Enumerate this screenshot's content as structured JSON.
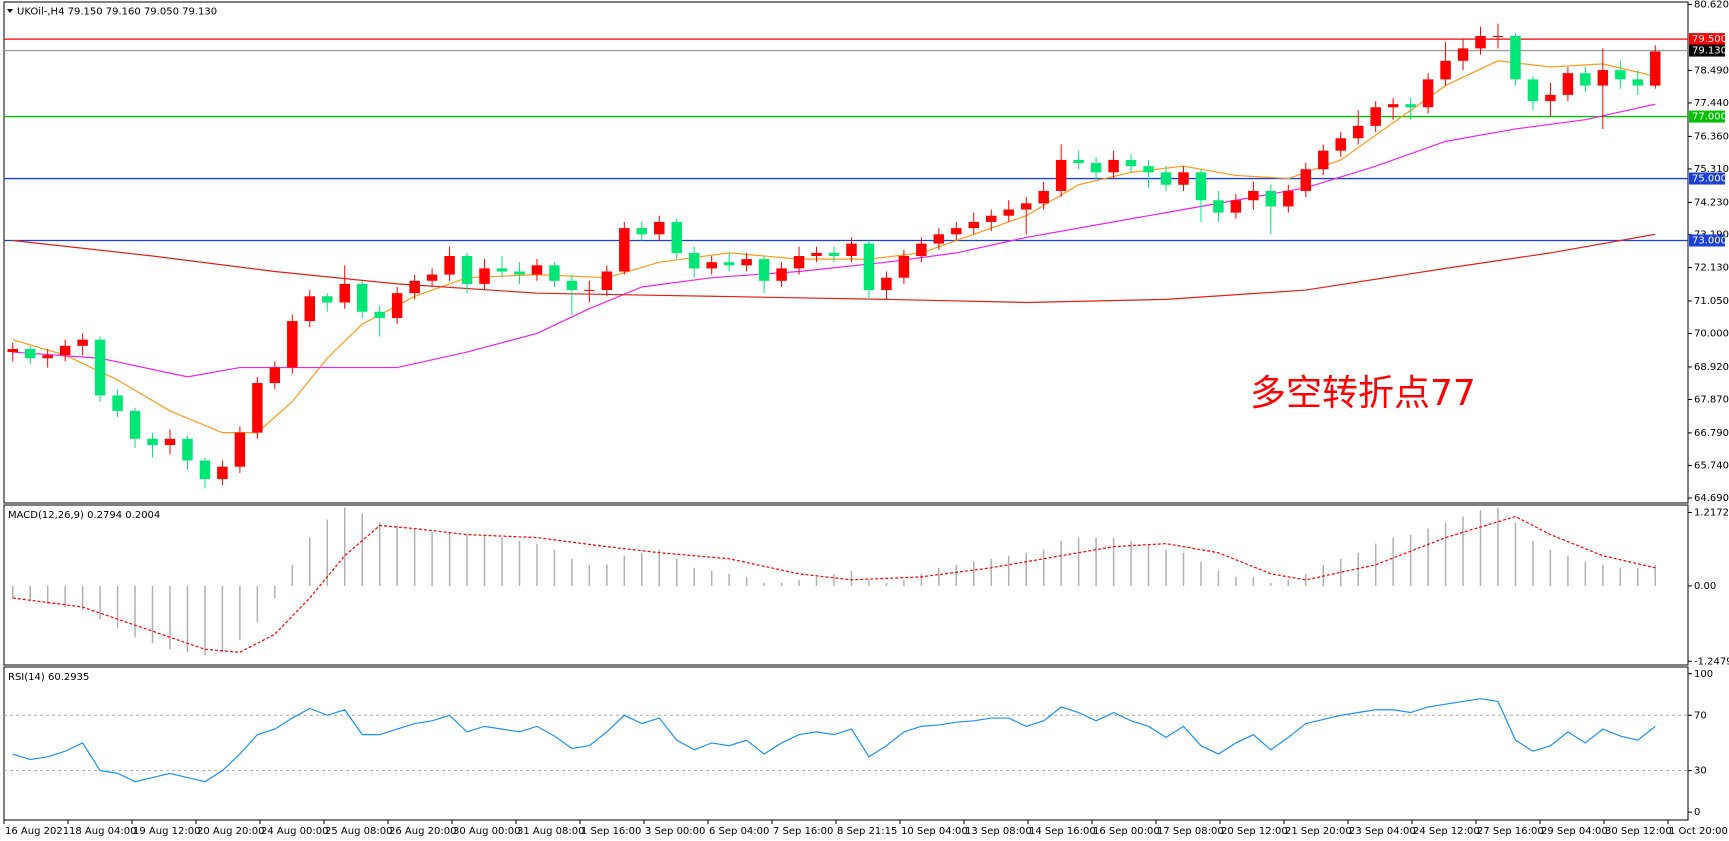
{
  "chart_data": [
    {
      "type": "candlestick",
      "title": "UKOil-,H4  79.150 79.160 79.050 79.130",
      "annotation": "多空转折点77",
      "up_color": "#ff0000",
      "down_color": "#00e676",
      "ylim": [
        64.69,
        80.62
      ],
      "yticks": [
        {
          "value": 80.62,
          "label": "80.620"
        },
        {
          "value": 78.49,
          "label": "78.490"
        },
        {
          "value": 77.44,
          "label": "77.440"
        },
        {
          "value": 76.36,
          "label": "76.360"
        },
        {
          "value": 75.31,
          "label": "75.310"
        },
        {
          "value": 74.23,
          "label": "74.230"
        },
        {
          "value": 73.19,
          "label": "73.190"
        },
        {
          "value": 72.13,
          "label": "72.130"
        },
        {
          "value": 71.05,
          "label": "71.050"
        },
        {
          "value": 70,
          "label": "70.000"
        },
        {
          "value": 68.92,
          "label": "68.920"
        },
        {
          "value": 67.87,
          "label": "67.870"
        },
        {
          "value": 66.79,
          "label": "66.790"
        },
        {
          "value": 65.74,
          "label": "65.740"
        },
        {
          "value": 64.69,
          "label": "64.690"
        }
      ],
      "hlines": [
        {
          "value": 79.5,
          "label": "79.500",
          "color": "#ff0000",
          "box": "#ff0000"
        },
        {
          "value": 79.13,
          "label": "79.130",
          "color": "#a0a0a0",
          "box": "#000000"
        },
        {
          "value": 77,
          "label": "77.000",
          "color": "#00c000",
          "box": "#00c000"
        },
        {
          "value": 75,
          "label": "75.000",
          "color": "#1c3fd6",
          "box": "#1c3fd6"
        },
        {
          "value": 73,
          "label": "73.000",
          "color": "#1c3fd6",
          "box": "#1c3fd6"
        }
      ],
      "candles": [
        [
          69.4,
          69.7,
          69.1,
          69.5
        ],
        [
          69.5,
          69.6,
          69.0,
          69.2
        ],
        [
          69.2,
          69.5,
          68.9,
          69.3
        ],
        [
          69.3,
          69.8,
          69.1,
          69.6
        ],
        [
          69.6,
          70.0,
          69.3,
          69.8
        ],
        [
          69.8,
          69.9,
          67.8,
          68.0
        ],
        [
          68.0,
          68.2,
          67.3,
          67.5
        ],
        [
          67.5,
          67.6,
          66.3,
          66.6
        ],
        [
          66.6,
          66.8,
          66.0,
          66.4
        ],
        [
          66.4,
          66.9,
          66.1,
          66.6
        ],
        [
          66.6,
          66.7,
          65.6,
          65.9
        ],
        [
          65.9,
          66.0,
          65.0,
          65.3
        ],
        [
          65.3,
          65.9,
          65.1,
          65.7
        ],
        [
          65.7,
          67.0,
          65.5,
          66.8
        ],
        [
          66.8,
          68.6,
          66.6,
          68.4
        ],
        [
          68.4,
          69.1,
          68.2,
          68.9
        ],
        [
          68.9,
          70.6,
          68.7,
          70.4
        ],
        [
          70.4,
          71.4,
          70.2,
          71.2
        ],
        [
          71.2,
          71.3,
          70.7,
          71.0
        ],
        [
          71.0,
          72.2,
          70.8,
          71.6
        ],
        [
          71.6,
          71.7,
          70.5,
          70.7
        ],
        [
          70.7,
          70.9,
          69.9,
          70.5
        ],
        [
          70.5,
          71.5,
          70.3,
          71.3
        ],
        [
          71.3,
          71.9,
          71.1,
          71.7
        ],
        [
          71.7,
          72.1,
          71.5,
          71.9
        ],
        [
          71.9,
          72.8,
          71.7,
          72.5
        ],
        [
          72.5,
          72.6,
          71.3,
          71.6
        ],
        [
          71.6,
          72.4,
          71.4,
          72.1
        ],
        [
          72.1,
          72.5,
          71.8,
          72.0
        ],
        [
          72.0,
          72.3,
          71.6,
          71.9
        ],
        [
          71.9,
          72.4,
          71.7,
          72.2
        ],
        [
          72.2,
          72.3,
          71.5,
          71.7
        ],
        [
          71.7,
          71.9,
          70.6,
          71.4
        ],
        [
          71.4,
          71.7,
          71.0,
          71.4
        ],
        [
          71.4,
          72.2,
          71.2,
          72.0
        ],
        [
          72.0,
          73.6,
          71.9,
          73.4
        ],
        [
          73.4,
          73.6,
          73.0,
          73.2
        ],
        [
          73.2,
          73.8,
          73.0,
          73.6
        ],
        [
          73.6,
          73.7,
          72.4,
          72.6
        ],
        [
          72.6,
          72.8,
          71.8,
          72.1
        ],
        [
          72.1,
          72.5,
          71.9,
          72.3
        ],
        [
          72.3,
          72.6,
          72.0,
          72.2
        ],
        [
          72.2,
          72.6,
          72.0,
          72.4
        ],
        [
          72.4,
          72.5,
          71.3,
          71.7
        ],
        [
          71.7,
          72.3,
          71.5,
          72.1
        ],
        [
          72.1,
          72.8,
          71.9,
          72.5
        ],
        [
          72.5,
          72.8,
          72.3,
          72.6
        ],
        [
          72.6,
          72.8,
          72.3,
          72.5
        ],
        [
          72.5,
          73.1,
          72.3,
          72.9
        ],
        [
          72.9,
          73.0,
          71.1,
          71.4
        ],
        [
          71.4,
          72.0,
          71.1,
          71.8
        ],
        [
          71.8,
          72.7,
          71.6,
          72.5
        ],
        [
          72.5,
          73.1,
          72.3,
          72.9
        ],
        [
          72.9,
          73.4,
          72.7,
          73.2
        ],
        [
          73.2,
          73.6,
          73.0,
          73.4
        ],
        [
          73.4,
          73.9,
          73.2,
          73.6
        ],
        [
          73.6,
          74.0,
          73.3,
          73.8
        ],
        [
          73.8,
          74.3,
          73.6,
          74.0
        ],
        [
          74.0,
          74.4,
          73.2,
          74.2
        ],
        [
          74.2,
          74.9,
          74.0,
          74.6
        ],
        [
          74.6,
          76.1,
          74.4,
          75.6
        ],
        [
          75.6,
          75.9,
          75.3,
          75.5
        ],
        [
          75.5,
          75.7,
          75.0,
          75.2
        ],
        [
          75.2,
          75.9,
          75.0,
          75.6
        ],
        [
          75.6,
          75.8,
          75.2,
          75.4
        ],
        [
          75.4,
          75.6,
          74.7,
          75.2
        ],
        [
          75.2,
          75.4,
          74.6,
          74.8
        ],
        [
          74.8,
          75.4,
          74.6,
          75.2
        ],
        [
          75.2,
          75.3,
          73.6,
          74.3
        ],
        [
          74.3,
          74.6,
          73.6,
          73.9
        ],
        [
          73.9,
          74.5,
          73.7,
          74.3
        ],
        [
          74.3,
          74.9,
          74.0,
          74.6
        ],
        [
          74.6,
          74.8,
          73.2,
          74.1
        ],
        [
          74.1,
          74.8,
          73.9,
          74.6
        ],
        [
          74.6,
          75.5,
          74.4,
          75.3
        ],
        [
          75.3,
          76.1,
          75.1,
          75.9
        ],
        [
          75.9,
          76.5,
          75.7,
          76.3
        ],
        [
          76.3,
          77.2,
          76.1,
          76.7
        ],
        [
          76.7,
          77.5,
          76.5,
          77.3
        ],
        [
          77.3,
          77.6,
          76.9,
          77.4
        ],
        [
          77.4,
          77.6,
          76.9,
          77.3
        ],
        [
          77.3,
          78.4,
          77.1,
          78.2
        ],
        [
          78.2,
          79.4,
          78.0,
          78.8
        ],
        [
          78.8,
          79.5,
          78.5,
          79.2
        ],
        [
          79.2,
          79.9,
          79.0,
          79.6
        ],
        [
          79.6,
          80.0,
          79.2,
          79.6
        ],
        [
          79.6,
          79.7,
          78.0,
          78.2
        ],
        [
          78.2,
          78.3,
          77.2,
          77.5
        ],
        [
          77.5,
          78.1,
          77.0,
          77.7
        ],
        [
          77.7,
          78.6,
          77.5,
          78.4
        ],
        [
          78.4,
          78.6,
          77.8,
          78.0
        ],
        [
          78.0,
          79.2,
          76.6,
          78.5
        ],
        [
          78.5,
          78.8,
          77.9,
          78.2
        ],
        [
          78.2,
          78.5,
          77.7,
          78.0
        ],
        [
          78.0,
          79.3,
          77.9,
          79.1
        ]
      ],
      "series": [
        {
          "color": "#ff9a1f",
          "x": [
            0,
            3,
            6,
            9,
            12,
            14,
            16,
            18,
            20,
            23,
            26,
            30,
            34,
            37,
            41,
            45,
            49,
            52,
            55,
            58,
            61,
            64,
            67,
            70,
            73,
            76,
            79,
            82,
            85,
            88,
            91,
            94
          ],
          "values": [
            69.8,
            69.3,
            68.5,
            67.5,
            66.8,
            66.8,
            67.8,
            69.2,
            70.3,
            71.2,
            71.8,
            71.9,
            71.8,
            72.3,
            72.6,
            72.4,
            72.4,
            72.6,
            73.2,
            73.8,
            74.8,
            75.2,
            75.4,
            75.1,
            75.0,
            75.6,
            76.8,
            78.0,
            78.8,
            78.6,
            78.7,
            78.3
          ]
        },
        {
          "color": "#ee22ee",
          "x": [
            0,
            5,
            10,
            13,
            17,
            22,
            26,
            30,
            33,
            36,
            40,
            45,
            50,
            54,
            58,
            62,
            66,
            70,
            74,
            78,
            82,
            86,
            90,
            94
          ],
          "values": [
            69.4,
            69.2,
            68.6,
            68.9,
            68.9,
            68.9,
            69.4,
            70.0,
            70.8,
            71.5,
            71.8,
            72.0,
            72.3,
            72.6,
            73.1,
            73.5,
            73.9,
            74.3,
            74.7,
            75.4,
            76.2,
            76.6,
            76.9,
            77.4
          ]
        },
        {
          "color": "#e0201a",
          "x": [
            0,
            8,
            15,
            22,
            30,
            40,
            50,
            58,
            66,
            74,
            82,
            88,
            94
          ],
          "values": [
            73.0,
            72.5,
            72.0,
            71.6,
            71.3,
            71.2,
            71.1,
            71.0,
            71.1,
            71.4,
            72.1,
            72.6,
            73.2
          ]
        }
      ]
    },
    {
      "type": "macd",
      "title": "MACD(12,26,9) 0.2794 0.2004",
      "ylim": [
        -1.31,
        1.34
      ],
      "yticks": [
        {
          "value": 1.2172,
          "label": "1.2172"
        },
        {
          "value": 0,
          "label": "0.00"
        },
        {
          "value": -1.2479,
          "label": "-1.2479"
        }
      ],
      "histogram": {
        "color": "#b0b0b0",
        "values": [
          -0.2,
          -0.25,
          -0.3,
          -0.35,
          -0.4,
          -0.55,
          -0.7,
          -0.85,
          -0.95,
          -1.05,
          -1.1,
          -1.15,
          -1.1,
          -0.9,
          -0.6,
          -0.2,
          0.35,
          0.8,
          1.1,
          1.3,
          1.2,
          1.05,
          1.0,
          0.95,
          0.9,
          0.9,
          0.85,
          0.85,
          0.8,
          0.75,
          0.7,
          0.6,
          0.45,
          0.35,
          0.35,
          0.5,
          0.55,
          0.6,
          0.45,
          0.3,
          0.25,
          0.2,
          0.15,
          0.05,
          0.05,
          0.1,
          0.15,
          0.2,
          0.25,
          0.1,
          0.05,
          0.1,
          0.2,
          0.3,
          0.35,
          0.4,
          0.45,
          0.5,
          0.55,
          0.6,
          0.75,
          0.8,
          0.8,
          0.8,
          0.75,
          0.7,
          0.6,
          0.55,
          0.4,
          0.25,
          0.15,
          0.15,
          0.05,
          0.1,
          0.2,
          0.35,
          0.45,
          0.55,
          0.7,
          0.8,
          0.85,
          0.95,
          1.05,
          1.15,
          1.25,
          1.3,
          1.05,
          0.75,
          0.6,
          0.5,
          0.4,
          0.35,
          0.3,
          0.3,
          0.35
        ]
      },
      "signal": {
        "color": "#ff0000",
        "x": [
          0,
          4,
          8,
          11,
          13,
          15,
          17,
          19,
          21,
          23,
          26,
          30,
          34,
          37,
          41,
          45,
          48,
          52,
          56,
          60,
          63,
          66,
          69,
          72,
          74,
          78,
          82,
          86,
          88,
          91,
          94
        ],
        "values": [
          -0.2,
          -0.35,
          -0.75,
          -1.05,
          -1.1,
          -0.8,
          -0.2,
          0.5,
          1.0,
          0.95,
          0.85,
          0.8,
          0.65,
          0.55,
          0.45,
          0.2,
          0.1,
          0.15,
          0.3,
          0.5,
          0.65,
          0.7,
          0.55,
          0.2,
          0.1,
          0.35,
          0.8,
          1.15,
          0.85,
          0.5,
          0.3
        ]
      }
    },
    {
      "type": "line",
      "title": "RSI(14) 60.2935",
      "ylim": [
        -5.7,
        104.9
      ],
      "yticks": [
        0,
        30,
        70,
        100
      ],
      "levels": [
        30,
        70
      ],
      "color": "#1e90ff",
      "values": [
        42,
        38,
        40,
        44,
        50,
        30,
        28,
        22,
        25,
        28,
        25,
        22,
        30,
        42,
        56,
        60,
        68,
        75,
        70,
        74,
        56,
        56,
        60,
        64,
        66,
        70,
        58,
        62,
        60,
        58,
        62,
        55,
        46,
        48,
        58,
        70,
        64,
        68,
        52,
        45,
        50,
        48,
        52,
        42,
        50,
        56,
        58,
        56,
        60,
        40,
        48,
        58,
        62,
        63,
        65,
        66,
        68,
        68,
        62,
        66,
        76,
        72,
        66,
        72,
        66,
        62,
        54,
        62,
        48,
        42,
        50,
        56,
        45,
        54,
        64,
        67,
        70,
        72,
        74,
        74,
        72,
        76,
        78,
        80,
        82,
        80,
        52,
        44,
        48,
        58,
        50,
        60,
        55,
        52,
        62
      ],
      "xlabels": [
        "16 Aug 2021",
        "18 Aug 04:00",
        "19 Aug 12:00",
        "20 Aug 20:00",
        "24 Aug 00:00",
        "25 Aug 08:00",
        "26 Aug 20:00",
        "30 Aug 00:00",
        "31 Aug 08:00",
        "1 Sep 16:00",
        "3 Sep 00:00",
        "6 Sep 04:00",
        "7 Sep 16:00",
        "8 Sep 21:15",
        "10 Sep 04:00",
        "13 Sep 08:00",
        "14 Sep 16:00",
        "16 Sep 00:00",
        "17 Sep 08:00",
        "20 Sep 12:00",
        "21 Sep 20:00",
        "23 Sep 04:00",
        "24 Sep 12:00",
        "27 Sep 16:00",
        "29 Sep 04:00",
        "30 Sep 12:00",
        "1 Oct 20:00"
      ]
    }
  ]
}
